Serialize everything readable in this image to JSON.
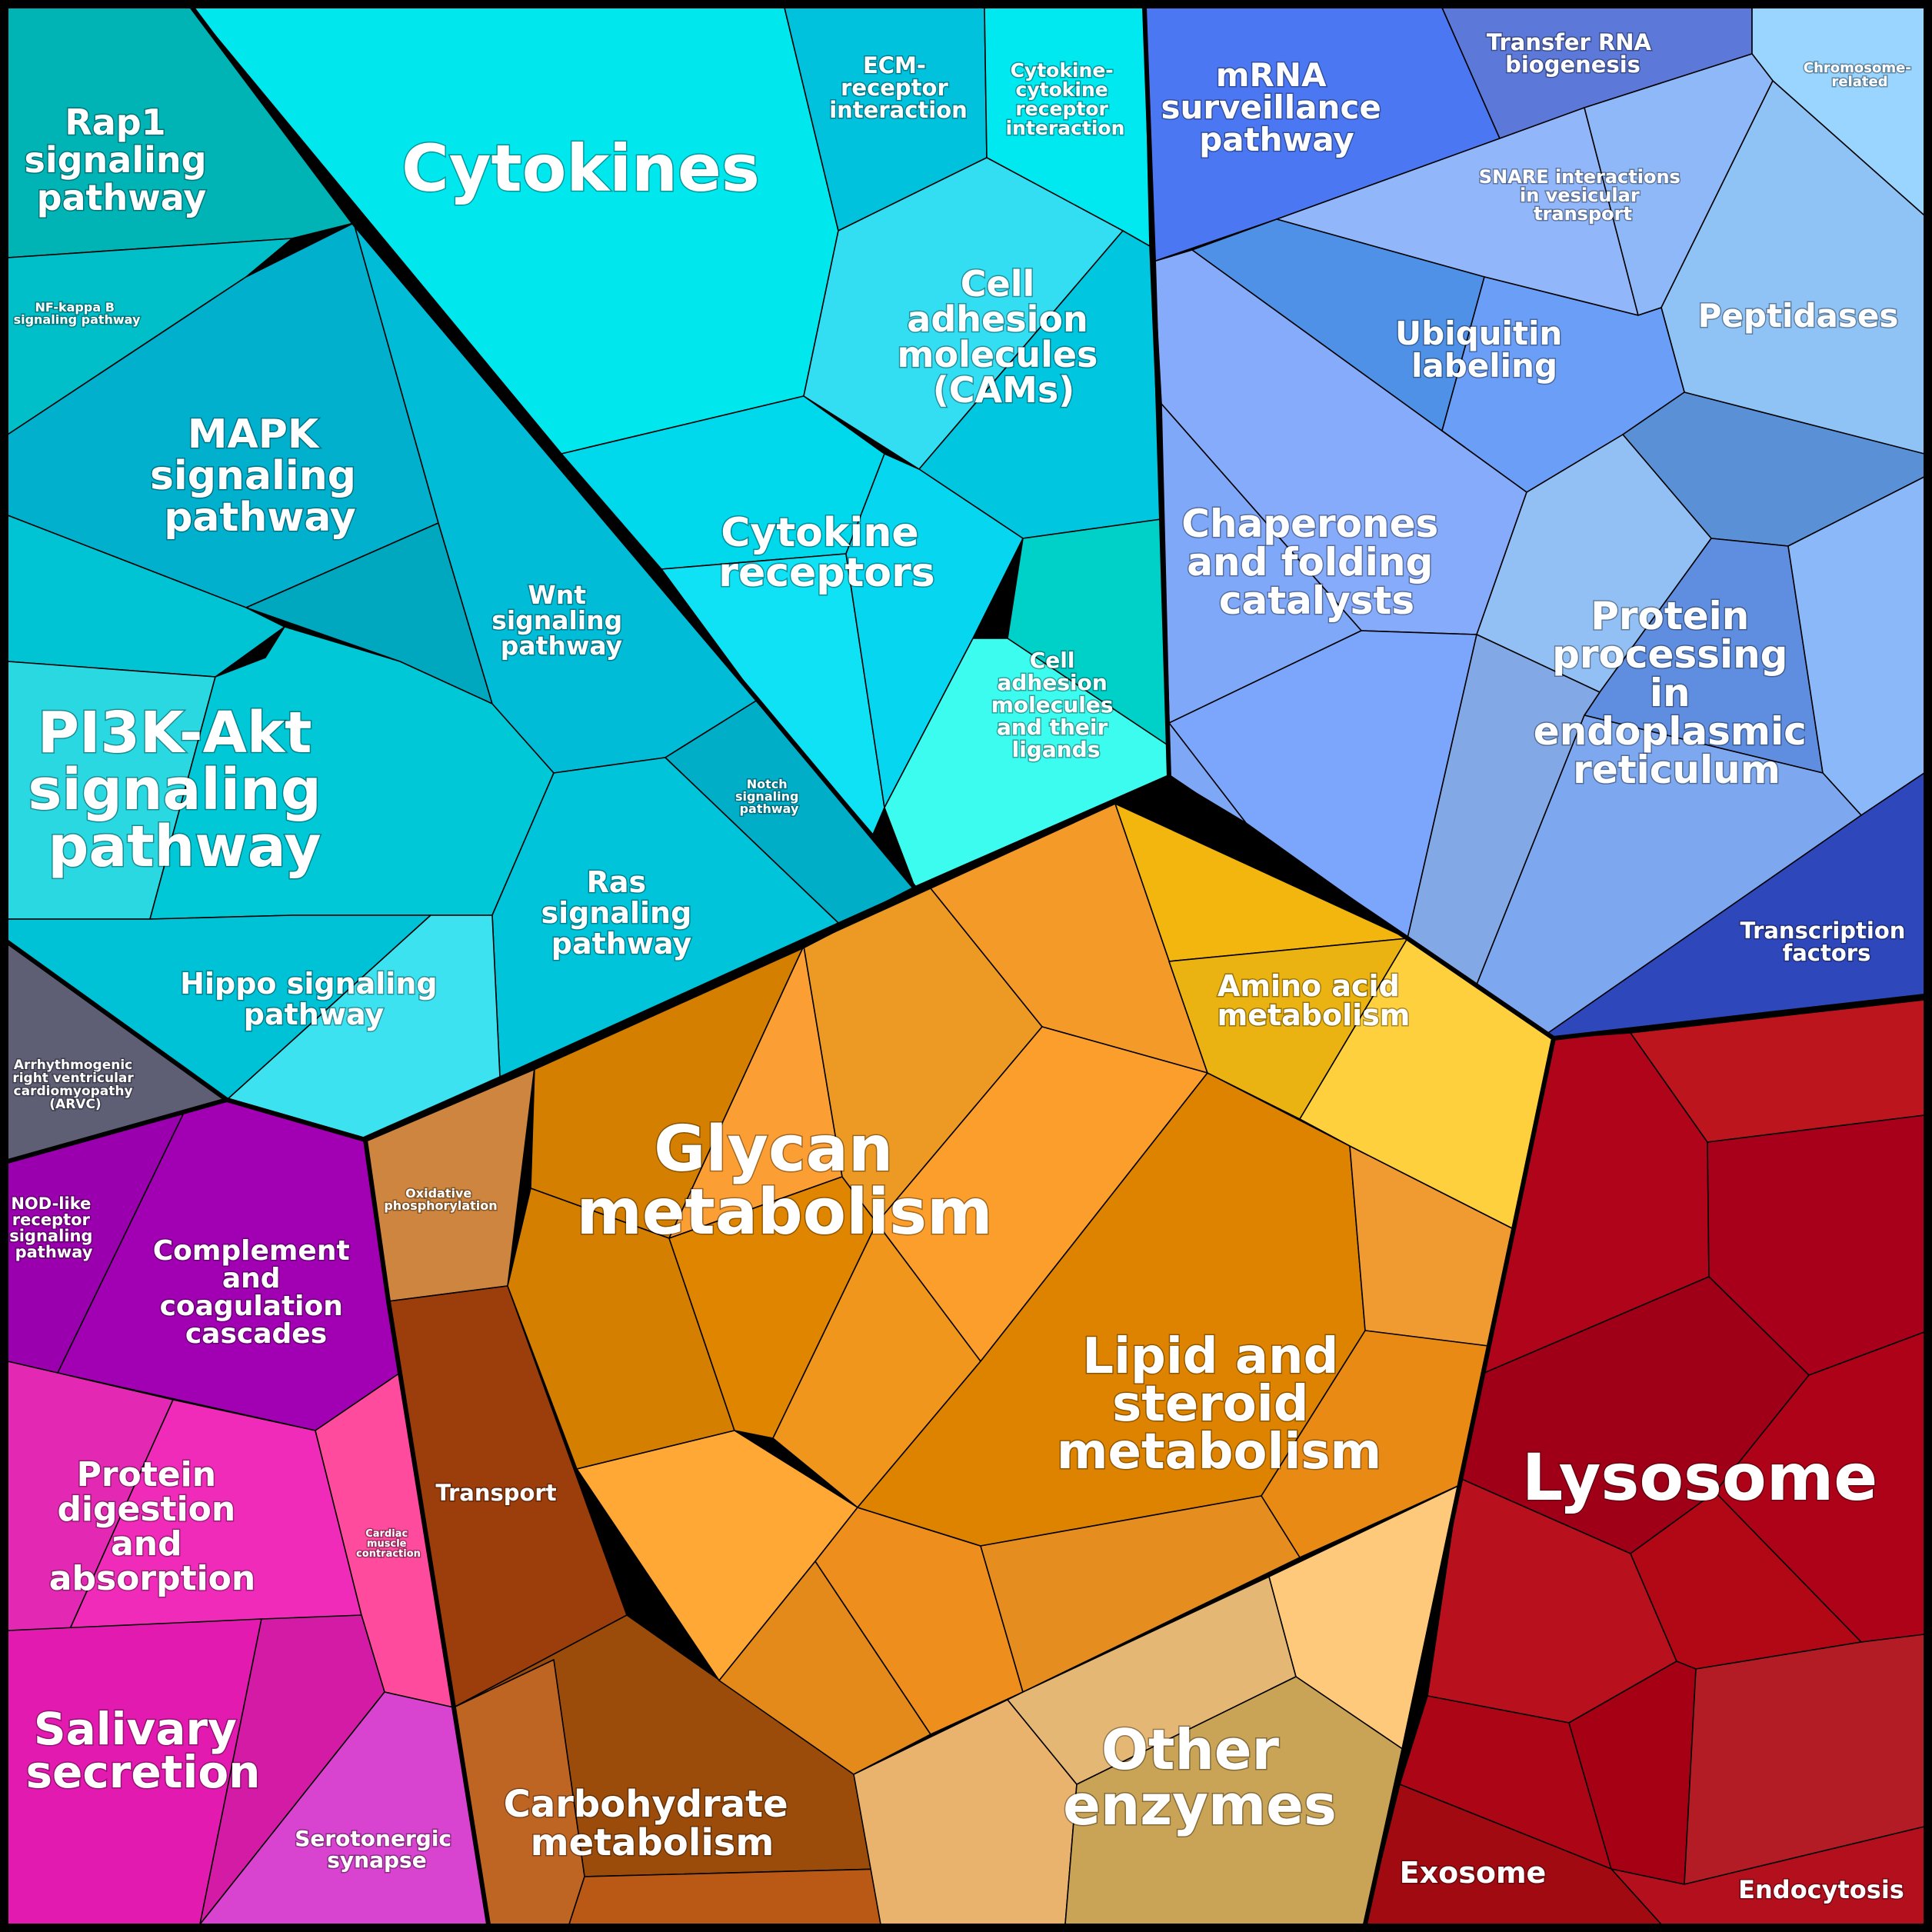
{
  "diagram": {
    "type": "voronoi-treemap",
    "groups": [
      {
        "id": "cytokines",
        "label": "Cytokines",
        "color": "#00e5ee"
      },
      {
        "id": "cytokine_receptors",
        "label": "Cytokine receptors",
        "color": "#0bdaf0"
      },
      {
        "id": "cams",
        "label": "Cell adhesion molecules (CAMs)",
        "color": "#33ddf2"
      },
      {
        "id": "ecm",
        "label": "ECM-receptor interaction",
        "color": "#00c2dc"
      },
      {
        "id": "cyto_cyto",
        "label": "Cytokine-cytokine receptor interaction",
        "color": "#00e8f0"
      },
      {
        "id": "cell_adhesion_ligands",
        "label": "Cell adhesion molecules and their ligands",
        "color": "#3cfcf0"
      },
      {
        "id": "rap1",
        "label": "Rap1 signaling pathway",
        "color": "#00b3b5"
      },
      {
        "id": "nfkb",
        "label": "NF-kappa B signaling pathway",
        "color": "#00bfc9"
      },
      {
        "id": "mapk",
        "label": "MAPK signaling pathway",
        "color": "#00b0cc"
      },
      {
        "id": "wnt",
        "label": "Wnt signaling pathway",
        "color": "#00bcd6"
      },
      {
        "id": "pi3k",
        "label": "PI3K-Akt signaling pathway",
        "color": "#00c8d6"
      },
      {
        "id": "ras",
        "label": "Ras signaling pathway",
        "color": "#00c4d9"
      },
      {
        "id": "notch",
        "label": "Notch signaling pathway",
        "color": "#00aec8"
      },
      {
        "id": "hippo",
        "label": "Hippo signaling pathway",
        "color": "#00c2d6"
      },
      {
        "id": "arvc",
        "label": "Arrhythmogenic right ventricular cardiomyopathy (ARVC)",
        "color": "#5e5e75"
      },
      {
        "id": "nod",
        "label": "NOD-like receptor signaling pathway",
        "color": "#9a00ad"
      },
      {
        "id": "complement",
        "label": "Complement and coagulation cascades",
        "color": "#a100b3"
      },
      {
        "id": "protein_digestion",
        "label": "Protein digestion and absorption",
        "color": "#ee2aba"
      },
      {
        "id": "cardiac",
        "label": "Cardiac muscle contraction",
        "color": "#ff4b9e"
      },
      {
        "id": "salivary",
        "label": "Salivary secretion",
        "color": "#e31ab0"
      },
      {
        "id": "serotonergic",
        "label": "Serotonergic synapse",
        "color": "#d843cf"
      },
      {
        "id": "oxphos",
        "label": "Oxidative phosphorylation",
        "color": "#cd853f"
      },
      {
        "id": "transport",
        "label": "Transport",
        "color": "#9c3d0c"
      },
      {
        "id": "carbohydrate",
        "label": "Carbohydrate metabolism",
        "color": "#b85818"
      },
      {
        "id": "glycan",
        "label": "Glycan metabolism",
        "color": "#e98a10"
      },
      {
        "id": "lipid",
        "label": "Lipid and steroid metabolism",
        "color": "#dd8300"
      },
      {
        "id": "amino",
        "label": "Amino acid metabolism",
        "color": "#f2b60e"
      },
      {
        "id": "other_enzymes",
        "label": "Other enzymes",
        "color": "#c9a356"
      },
      {
        "id": "lysosome",
        "label": "Lysosome",
        "color": "#a8001a"
      },
      {
        "id": "exosome",
        "label": "Exosome",
        "color": "#a00a10"
      },
      {
        "id": "endocytosis",
        "label": "Endocytosis",
        "color": "#b30f1c"
      },
      {
        "id": "mrna",
        "label": "mRNA surveillance pathway",
        "color": "#4b78f2"
      },
      {
        "id": "trna",
        "label": "Transfer RNA biogenesis",
        "color": "#5c78d9"
      },
      {
        "id": "chromosome",
        "label": "Chromosome-related",
        "color": "#99d5ff"
      },
      {
        "id": "snare",
        "label": "SNARE interactions in vesicular transport",
        "color": "#8eb3f7"
      },
      {
        "id": "ubiquitin",
        "label": "Ubiquitin labeling",
        "color": "#6fa0f5"
      },
      {
        "id": "peptidases",
        "label": "Peptidases",
        "color": "#8fc2f5"
      },
      {
        "id": "chaperones",
        "label": "Chaperones and folding catalysts",
        "color": "#86abfa"
      },
      {
        "id": "er_processing",
        "label": "Protein processing in endoplasmic reticulum",
        "color": "#8ab5f0"
      },
      {
        "id": "transcription",
        "label": "Transcription factors",
        "color": "#2e47bb"
      }
    ]
  }
}
